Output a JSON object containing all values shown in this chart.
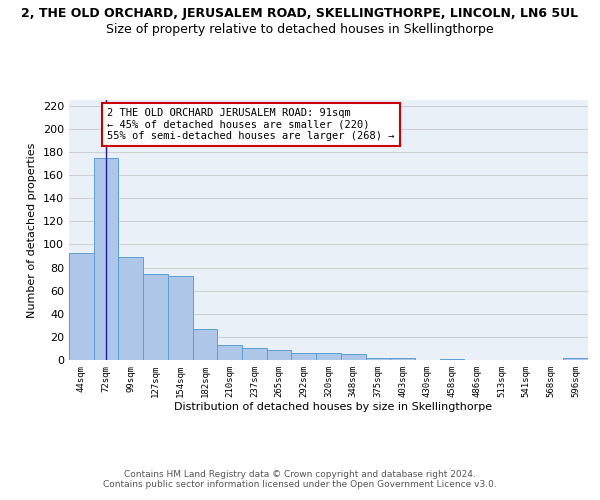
{
  "title": "2, THE OLD ORCHARD, JERUSALEM ROAD, SKELLINGTHORPE, LINCOLN, LN6 5UL",
  "subtitle": "Size of property relative to detached houses in Skellingthorpe",
  "xlabel": "Distribution of detached houses by size in Skellingthorpe",
  "ylabel": "Number of detached properties",
  "categories": [
    "44sqm",
    "72sqm",
    "99sqm",
    "127sqm",
    "154sqm",
    "182sqm",
    "210sqm",
    "237sqm",
    "265sqm",
    "292sqm",
    "320sqm",
    "348sqm",
    "375sqm",
    "403sqm",
    "430sqm",
    "458sqm",
    "486sqm",
    "513sqm",
    "541sqm",
    "568sqm",
    "596sqm"
  ],
  "values": [
    93,
    175,
    89,
    74,
    73,
    27,
    13,
    10,
    9,
    6,
    6,
    5,
    2,
    2,
    0,
    1,
    0,
    0,
    0,
    0,
    2
  ],
  "bar_color": "#aec6e8",
  "bar_edge_color": "#5a9fd4",
  "vline_x": 1,
  "annotation_text": "2 THE OLD ORCHARD JERUSALEM ROAD: 91sqm\n← 45% of detached houses are smaller (220)\n55% of semi-detached houses are larger (268) →",
  "annotation_box_color": "#ffffff",
  "annotation_box_edge": "#cc0000",
  "ylim": [
    0,
    225
  ],
  "yticks": [
    0,
    20,
    40,
    60,
    80,
    100,
    120,
    140,
    160,
    180,
    200,
    220
  ],
  "grid_color": "#d0d0d0",
  "bg_color": "#eaf0f8",
  "footer": "Contains HM Land Registry data © Crown copyright and database right 2024.\nContains public sector information licensed under the Open Government Licence v3.0.",
  "title_fontsize": 9,
  "subtitle_fontsize": 9,
  "annotation_fontsize": 7.5
}
